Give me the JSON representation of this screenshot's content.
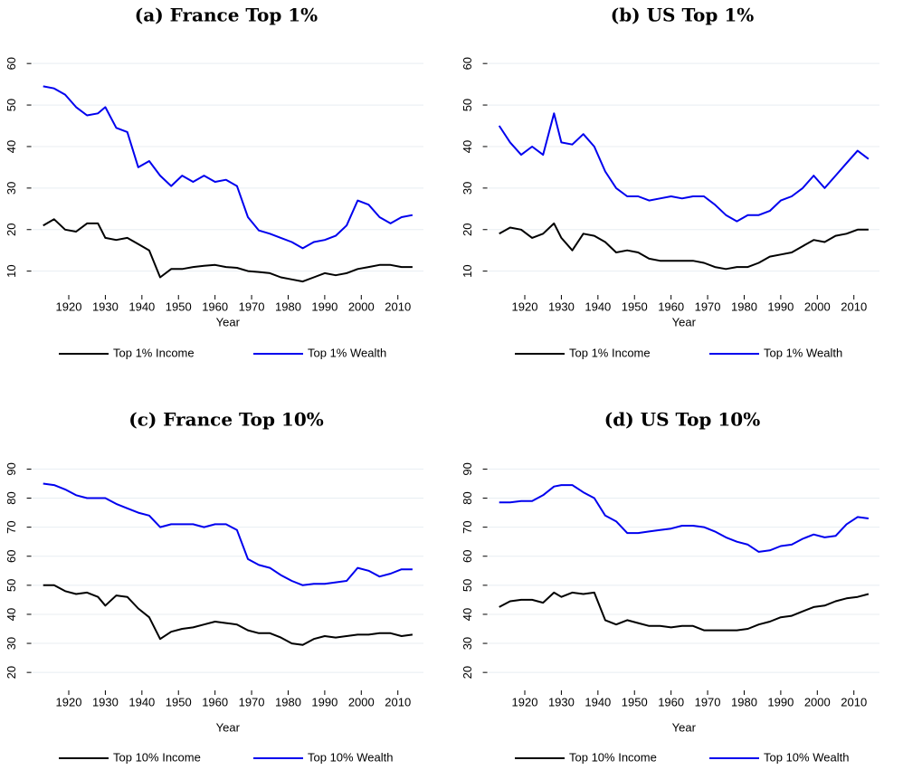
{
  "chart_data": [
    {
      "type": "line",
      "title": "(a) France Top 1%",
      "xlabel": "Year",
      "x": [
        1913,
        1916,
        1919,
        1922,
        1925,
        1928,
        1930,
        1933,
        1936,
        1939,
        1942,
        1945,
        1948,
        1951,
        1954,
        1957,
        1960,
        1963,
        1966,
        1969,
        1972,
        1975,
        1978,
        1981,
        1984,
        1987,
        1990,
        1993,
        1996,
        1999,
        2002,
        2005,
        2008,
        2011,
        2014
      ],
      "series": [
        {
          "name": "Top 1% Income",
          "color": "#000000",
          "values": [
            21,
            22.5,
            20,
            19.5,
            21.5,
            21.5,
            18,
            17.5,
            18,
            16.5,
            15,
            8.5,
            10.5,
            10.5,
            11,
            11.3,
            11.5,
            11,
            10.8,
            10,
            9.8,
            9.5,
            8.5,
            8,
            7.5,
            8.5,
            9.5,
            9,
            9.5,
            10.5,
            11,
            11.5,
            11.5,
            11,
            11
          ]
        },
        {
          "name": "Top 1% Wealth",
          "color": "#0000ee",
          "values": [
            54.5,
            54,
            52.5,
            49.5,
            47.5,
            48,
            49.5,
            44.5,
            43.5,
            35,
            36.5,
            33,
            30.5,
            33,
            31.5,
            33,
            31.5,
            32,
            30.5,
            23,
            19.8,
            19,
            18,
            17,
            15.5,
            17,
            17.5,
            18.5,
            21,
            27,
            26,
            23,
            21.5,
            23,
            23.5
          ]
        }
      ],
      "xlim": [
        1910,
        2017
      ],
      "xticks": [
        1920,
        1930,
        1940,
        1950,
        1960,
        1970,
        1980,
        1990,
        2000,
        2010
      ],
      "ylim": [
        6,
        62
      ],
      "yticks": [
        10,
        20,
        30,
        40,
        50,
        60
      ],
      "grid": true
    },
    {
      "type": "line",
      "title": "(b) US Top 1%",
      "xlabel": "Year",
      "x": [
        1913,
        1916,
        1919,
        1922,
        1925,
        1928,
        1930,
        1933,
        1936,
        1939,
        1942,
        1945,
        1948,
        1951,
        1954,
        1957,
        1960,
        1963,
        1966,
        1969,
        1972,
        1975,
        1978,
        1981,
        1984,
        1987,
        1990,
        1993,
        1996,
        1999,
        2002,
        2005,
        2008,
        2011,
        2014
      ],
      "series": [
        {
          "name": "Top 1% Income",
          "color": "#000000",
          "values": [
            19,
            20.5,
            20,
            18,
            19,
            21.5,
            18,
            15,
            19,
            18.5,
            17,
            14.5,
            15,
            14.5,
            13,
            12.5,
            12.5,
            12.5,
            12.5,
            12,
            11,
            10.5,
            11,
            11,
            12,
            13.5,
            14,
            14.5,
            16,
            17.5,
            17,
            18.5,
            19,
            20,
            20
          ]
        },
        {
          "name": "Top 1% Wealth",
          "color": "#0000ee",
          "values": [
            45,
            41,
            38,
            40,
            38,
            48,
            41,
            40.5,
            43,
            40,
            34,
            30,
            28,
            28,
            27,
            27.5,
            28,
            27.5,
            28,
            28,
            26,
            23.5,
            22,
            23.5,
            23.5,
            24.5,
            27,
            28,
            30,
            33,
            30,
            33,
            36,
            39,
            37
          ]
        }
      ],
      "xlim": [
        1910,
        2017
      ],
      "xticks": [
        1920,
        1930,
        1940,
        1950,
        1960,
        1970,
        1980,
        1990,
        2000,
        2010
      ],
      "ylim": [
        6,
        62
      ],
      "yticks": [
        10,
        20,
        30,
        40,
        50,
        60
      ],
      "grid": true
    },
    {
      "type": "line",
      "title": "(c) France Top 10%",
      "xlabel": "Year",
      "x": [
        1913,
        1916,
        1919,
        1922,
        1925,
        1928,
        1930,
        1933,
        1936,
        1939,
        1942,
        1945,
        1948,
        1951,
        1954,
        1957,
        1960,
        1963,
        1966,
        1969,
        1972,
        1975,
        1978,
        1981,
        1984,
        1987,
        1990,
        1993,
        1996,
        1999,
        2002,
        2005,
        2008,
        2011,
        2014
      ],
      "series": [
        {
          "name": "Top 10% Income",
          "color": "#000000",
          "values": [
            50,
            50,
            48,
            47,
            47.5,
            46,
            43,
            46.5,
            46,
            42,
            39,
            31.5,
            34,
            35,
            35.5,
            36.5,
            37.5,
            37,
            36.5,
            34.5,
            33.5,
            33.5,
            32,
            30,
            29.5,
            31.5,
            32.5,
            32,
            32.5,
            33,
            33,
            33.5,
            33.5,
            32.5,
            33
          ]
        },
        {
          "name": "Top 10% Wealth",
          "color": "#0000ee",
          "values": [
            85,
            84.5,
            83,
            81,
            80,
            80,
            80,
            78,
            76.5,
            75,
            74,
            70,
            71,
            71,
            71,
            70,
            71,
            71,
            69,
            59,
            57,
            56,
            53.5,
            51.5,
            50,
            50.5,
            50.5,
            51,
            51.5,
            56,
            55,
            53,
            54,
            55.5,
            55.5
          ]
        }
      ],
      "xlim": [
        1910,
        2017
      ],
      "xticks": [
        1920,
        1930,
        1940,
        1950,
        1960,
        1970,
        1980,
        1990,
        2000,
        2010
      ],
      "ylim": [
        16,
        92
      ],
      "yticks": [
        20,
        30,
        40,
        50,
        60,
        70,
        80,
        90
      ],
      "grid": true
    },
    {
      "type": "line",
      "title": "(d) US Top 10%",
      "xlabel": "Year",
      "x": [
        1913,
        1916,
        1919,
        1922,
        1925,
        1928,
        1930,
        1933,
        1936,
        1939,
        1942,
        1945,
        1948,
        1951,
        1954,
        1957,
        1960,
        1963,
        1966,
        1969,
        1972,
        1975,
        1978,
        1981,
        1984,
        1987,
        1990,
        1993,
        1996,
        1999,
        2002,
        2005,
        2008,
        2011,
        2014
      ],
      "series": [
        {
          "name": "Top 10% Income",
          "color": "#000000",
          "values": [
            42.5,
            44.5,
            45,
            45,
            44,
            47.5,
            46,
            47.5,
            47,
            47.5,
            38,
            36.5,
            38,
            37,
            36,
            36,
            35.5,
            36,
            36,
            34.5,
            34.5,
            34.5,
            34.5,
            35,
            36.5,
            37.5,
            39,
            39.5,
            41,
            42.5,
            43,
            44.5,
            45.5,
            46,
            47
          ]
        },
        {
          "name": "Top 10% Wealth",
          "color": "#0000ee",
          "values": [
            78.5,
            78.5,
            79,
            79,
            81,
            84,
            84.5,
            84.5,
            82,
            80,
            74,
            72,
            68,
            68,
            68.5,
            69,
            69.5,
            70.5,
            70.5,
            70,
            68.5,
            66.5,
            65,
            64,
            61.5,
            62,
            63.5,
            64,
            66,
            67.5,
            66.5,
            67,
            71,
            73.5,
            73
          ]
        }
      ],
      "xlim": [
        1910,
        2017
      ],
      "xticks": [
        1920,
        1930,
        1940,
        1950,
        1960,
        1970,
        1980,
        1990,
        2000,
        2010
      ],
      "ylim": [
        16,
        92
      ],
      "yticks": [
        20,
        30,
        40,
        50,
        60,
        70,
        80,
        90
      ],
      "grid": true
    }
  ]
}
